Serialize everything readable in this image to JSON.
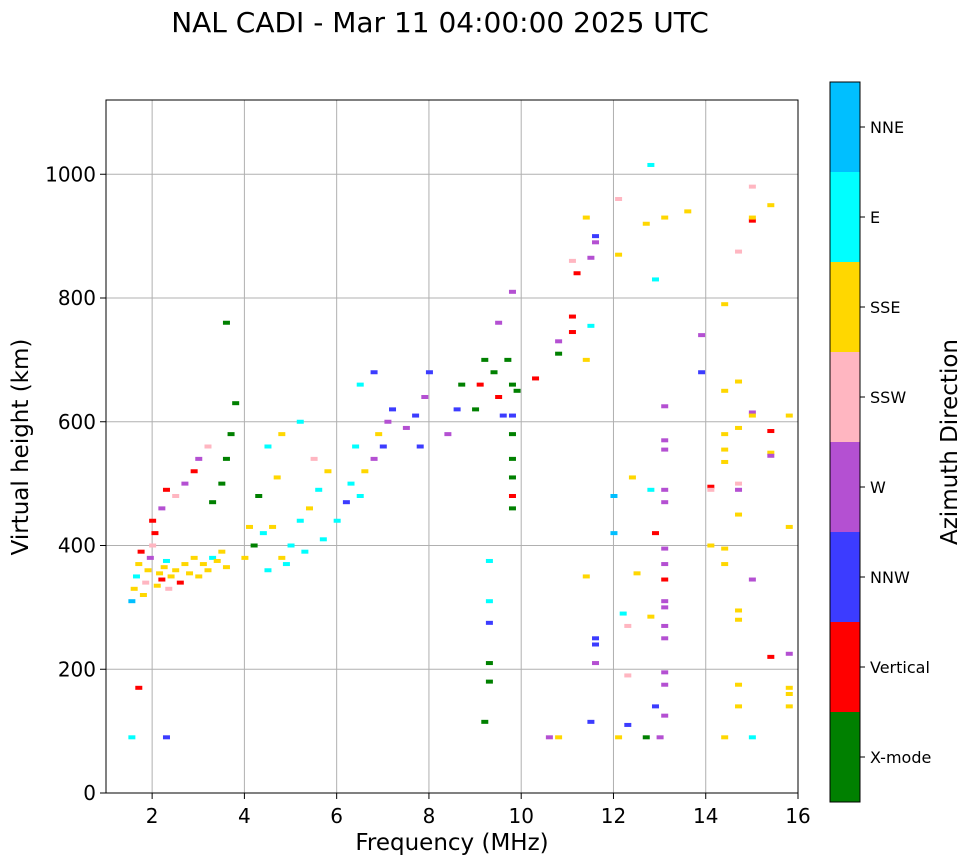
{
  "chart_data": {
    "type": "scatter",
    "title": "NAL CADI - Mar 11 04:00:00 2025 UTC",
    "xlabel": "Frequency (MHz)",
    "ylabel": "Virtual height (km)",
    "xlim": [
      1,
      16
    ],
    "ylim": [
      0,
      1120
    ],
    "xticks": [
      2,
      4,
      6,
      8,
      10,
      12,
      14,
      16
    ],
    "yticks": [
      0,
      200,
      400,
      600,
      800,
      1000
    ],
    "grid": true,
    "colorbar": {
      "title": "Azimuth Direction",
      "categories": [
        {
          "label": "X-mode",
          "color": "#008000"
        },
        {
          "label": "Vertical",
          "color": "#ff0000"
        },
        {
          "label": "NNW",
          "color": "#3c3cff"
        },
        {
          "label": "W",
          "color": "#b450d2"
        },
        {
          "label": "SSW",
          "color": "#ffb6c1"
        },
        {
          "label": "SSE",
          "color": "#ffd700"
        },
        {
          "label": "E",
          "color": "#00ffff"
        },
        {
          "label": "NNE",
          "color": "#00bfff"
        }
      ]
    },
    "points": [
      {
        "f": 1.55,
        "h": 310,
        "c": "NNE"
      },
      {
        "f": 1.6,
        "h": 330,
        "c": "SSE"
      },
      {
        "f": 1.65,
        "h": 350,
        "c": "E"
      },
      {
        "f": 1.7,
        "h": 370,
        "c": "SSE"
      },
      {
        "f": 1.75,
        "h": 390,
        "c": "Vertical"
      },
      {
        "f": 1.8,
        "h": 320,
        "c": "SSE"
      },
      {
        "f": 1.85,
        "h": 340,
        "c": "SSW"
      },
      {
        "f": 1.9,
        "h": 360,
        "c": "SSE"
      },
      {
        "f": 1.95,
        "h": 380,
        "c": "W"
      },
      {
        "f": 2.0,
        "h": 400,
        "c": "SSW"
      },
      {
        "f": 2.05,
        "h": 420,
        "c": "Vertical"
      },
      {
        "f": 2.1,
        "h": 335,
        "c": "SSE"
      },
      {
        "f": 2.15,
        "h": 355,
        "c": "SSE"
      },
      {
        "f": 2.2,
        "h": 345,
        "c": "Vertical"
      },
      {
        "f": 2.25,
        "h": 365,
        "c": "SSE"
      },
      {
        "f": 2.3,
        "h": 375,
        "c": "E"
      },
      {
        "f": 2.35,
        "h": 330,
        "c": "SSW"
      },
      {
        "f": 2.4,
        "h": 350,
        "c": "SSE"
      },
      {
        "f": 2.5,
        "h": 360,
        "c": "SSE"
      },
      {
        "f": 2.6,
        "h": 340,
        "c": "Vertical"
      },
      {
        "f": 2.7,
        "h": 370,
        "c": "SSE"
      },
      {
        "f": 2.8,
        "h": 355,
        "c": "SSE"
      },
      {
        "f": 2.9,
        "h": 380,
        "c": "SSE"
      },
      {
        "f": 3.0,
        "h": 350,
        "c": "SSE"
      },
      {
        "f": 3.1,
        "h": 370,
        "c": "SSE"
      },
      {
        "f": 3.2,
        "h": 360,
        "c": "SSE"
      },
      {
        "f": 3.3,
        "h": 380,
        "c": "E"
      },
      {
        "f": 3.4,
        "h": 375,
        "c": "SSE"
      },
      {
        "f": 3.5,
        "h": 390,
        "c": "SSE"
      },
      {
        "f": 3.6,
        "h": 365,
        "c": "SSE"
      },
      {
        "f": 2.0,
        "h": 440,
        "c": "Vertical"
      },
      {
        "f": 2.2,
        "h": 460,
        "c": "W"
      },
      {
        "f": 2.3,
        "h": 490,
        "c": "Vertical"
      },
      {
        "f": 2.5,
        "h": 480,
        "c": "SSW"
      },
      {
        "f": 2.7,
        "h": 500,
        "c": "W"
      },
      {
        "f": 2.9,
        "h": 520,
        "c": "Vertical"
      },
      {
        "f": 3.0,
        "h": 540,
        "c": "W"
      },
      {
        "f": 3.2,
        "h": 560,
        "c": "SSW"
      },
      {
        "f": 3.3,
        "h": 470,
        "c": "X-mode"
      },
      {
        "f": 3.5,
        "h": 500,
        "c": "X-mode"
      },
      {
        "f": 3.6,
        "h": 540,
        "c": "X-mode"
      },
      {
        "f": 3.7,
        "h": 580,
        "c": "X-mode"
      },
      {
        "f": 3.8,
        "h": 630,
        "c": "X-mode"
      },
      {
        "f": 3.6,
        "h": 760,
        "c": "X-mode"
      },
      {
        "f": 1.55,
        "h": 90,
        "c": "E"
      },
      {
        "f": 1.7,
        "h": 170,
        "c": "Vertical"
      },
      {
        "f": 2.3,
        "h": 90,
        "c": "NNW"
      },
      {
        "f": 4.0,
        "h": 380,
        "c": "SSE"
      },
      {
        "f": 4.2,
        "h": 400,
        "c": "X-mode"
      },
      {
        "f": 4.4,
        "h": 420,
        "c": "E"
      },
      {
        "f": 4.6,
        "h": 430,
        "c": "SSE"
      },
      {
        "f": 4.8,
        "h": 380,
        "c": "SSE"
      },
      {
        "f": 5.0,
        "h": 400,
        "c": "E"
      },
      {
        "f": 5.2,
        "h": 440,
        "c": "E"
      },
      {
        "f": 5.4,
        "h": 460,
        "c": "SSE"
      },
      {
        "f": 5.6,
        "h": 490,
        "c": "E"
      },
      {
        "f": 5.8,
        "h": 520,
        "c": "SSE"
      },
      {
        "f": 4.5,
        "h": 360,
        "c": "E"
      },
      {
        "f": 4.9,
        "h": 370,
        "c": "E"
      },
      {
        "f": 5.3,
        "h": 390,
        "c": "E"
      },
      {
        "f": 5.7,
        "h": 410,
        "c": "E"
      },
      {
        "f": 4.3,
        "h": 480,
        "c": "X-mode"
      },
      {
        "f": 4.5,
        "h": 560,
        "c": "E"
      },
      {
        "f": 4.8,
        "h": 580,
        "c": "SSE"
      },
      {
        "f": 5.2,
        "h": 600,
        "c": "E"
      },
      {
        "f": 5.5,
        "h": 540,
        "c": "SSW"
      },
      {
        "f": 4.1,
        "h": 430,
        "c": "SSE"
      },
      {
        "f": 4.7,
        "h": 510,
        "c": "SSE"
      },
      {
        "f": 6.0,
        "h": 440,
        "c": "E"
      },
      {
        "f": 6.2,
        "h": 470,
        "c": "NNW"
      },
      {
        "f": 6.3,
        "h": 500,
        "c": "E"
      },
      {
        "f": 6.5,
        "h": 480,
        "c": "E"
      },
      {
        "f": 6.6,
        "h": 520,
        "c": "SSE"
      },
      {
        "f": 6.8,
        "h": 540,
        "c": "W"
      },
      {
        "f": 7.0,
        "h": 560,
        "c": "NNW"
      },
      {
        "f": 7.1,
        "h": 600,
        "c": "W"
      },
      {
        "f": 7.2,
        "h": 620,
        "c": "NNW"
      },
      {
        "f": 6.9,
        "h": 580,
        "c": "SSE"
      },
      {
        "f": 6.4,
        "h": 560,
        "c": "E"
      },
      {
        "f": 6.5,
        "h": 660,
        "c": "E"
      },
      {
        "f": 6.8,
        "h": 680,
        "c": "NNW"
      },
      {
        "f": 7.5,
        "h": 590,
        "c": "W"
      },
      {
        "f": 7.7,
        "h": 610,
        "c": "NNW"
      },
      {
        "f": 7.9,
        "h": 640,
        "c": "W"
      },
      {
        "f": 8.0,
        "h": 680,
        "c": "NNW"
      },
      {
        "f": 7.8,
        "h": 560,
        "c": "NNW"
      },
      {
        "f": 8.4,
        "h": 580,
        "c": "W"
      },
      {
        "f": 8.6,
        "h": 620,
        "c": "NNW"
      },
      {
        "f": 8.7,
        "h": 660,
        "c": "X-mode"
      },
      {
        "f": 9.0,
        "h": 620,
        "c": "X-mode"
      },
      {
        "f": 9.1,
        "h": 660,
        "c": "Vertical"
      },
      {
        "f": 9.2,
        "h": 700,
        "c": "X-mode"
      },
      {
        "f": 9.4,
        "h": 680,
        "c": "X-mode"
      },
      {
        "f": 9.5,
        "h": 640,
        "c": "Vertical"
      },
      {
        "f": 9.6,
        "h": 610,
        "c": "NNW"
      },
      {
        "f": 9.8,
        "h": 660,
        "c": "X-mode"
      },
      {
        "f": 9.7,
        "h": 700,
        "c": "X-mode"
      },
      {
        "f": 9.9,
        "h": 650,
        "c": "X-mode"
      },
      {
        "f": 9.5,
        "h": 760,
        "c": "W"
      },
      {
        "f": 9.8,
        "h": 810,
        "c": "W"
      },
      {
        "f": 9.8,
        "h": 540,
        "c": "X-mode"
      },
      {
        "f": 9.8,
        "h": 510,
        "c": "X-mode"
      },
      {
        "f": 9.8,
        "h": 480,
        "c": "Vertical"
      },
      {
        "f": 9.8,
        "h": 460,
        "c": "X-mode"
      },
      {
        "f": 9.8,
        "h": 580,
        "c": "X-mode"
      },
      {
        "f": 9.8,
        "h": 610,
        "c": "NNW"
      },
      {
        "f": 9.3,
        "h": 375,
        "c": "E"
      },
      {
        "f": 9.3,
        "h": 310,
        "c": "E"
      },
      {
        "f": 9.3,
        "h": 275,
        "c": "NNW"
      },
      {
        "f": 9.3,
        "h": 210,
        "c": "X-mode"
      },
      {
        "f": 9.3,
        "h": 180,
        "c": "X-mode"
      },
      {
        "f": 9.2,
        "h": 115,
        "c": "X-mode"
      },
      {
        "f": 10.3,
        "h": 670,
        "c": "Vertical"
      },
      {
        "f": 10.8,
        "h": 710,
        "c": "X-mode"
      },
      {
        "f": 10.8,
        "h": 730,
        "c": "W"
      },
      {
        "f": 11.1,
        "h": 745,
        "c": "Vertical"
      },
      {
        "f": 11.1,
        "h": 770,
        "c": "Vertical"
      },
      {
        "f": 11.1,
        "h": 860,
        "c": "SSW"
      },
      {
        "f": 11.2,
        "h": 840,
        "c": "Vertical"
      },
      {
        "f": 11.4,
        "h": 930,
        "c": "SSE"
      },
      {
        "f": 11.5,
        "h": 865,
        "c": "W"
      },
      {
        "f": 11.6,
        "h": 900,
        "c": "NNW"
      },
      {
        "f": 11.6,
        "h": 890,
        "c": "W"
      },
      {
        "f": 11.5,
        "h": 755,
        "c": "E"
      },
      {
        "f": 11.4,
        "h": 700,
        "c": "SSE"
      },
      {
        "f": 11.4,
        "h": 350,
        "c": "SSE"
      },
      {
        "f": 11.6,
        "h": 250,
        "c": "NNW"
      },
      {
        "f": 11.6,
        "h": 240,
        "c": "NNW"
      },
      {
        "f": 11.6,
        "h": 210,
        "c": "W"
      },
      {
        "f": 11.5,
        "h": 115,
        "c": "NNW"
      },
      {
        "f": 10.6,
        "h": 90,
        "c": "W"
      },
      {
        "f": 10.8,
        "h": 90,
        "c": "SSE"
      },
      {
        "f": 12.1,
        "h": 960,
        "c": "SSW"
      },
      {
        "f": 12.1,
        "h": 870,
        "c": "SSE"
      },
      {
        "f": 12.0,
        "h": 480,
        "c": "NNE"
      },
      {
        "f": 12.0,
        "h": 420,
        "c": "NNE"
      },
      {
        "f": 12.2,
        "h": 290,
        "c": "E"
      },
      {
        "f": 12.3,
        "h": 270,
        "c": "SSW"
      },
      {
        "f": 12.3,
        "h": 190,
        "c": "SSW"
      },
      {
        "f": 12.3,
        "h": 110,
        "c": "NNW"
      },
      {
        "f": 12.1,
        "h": 90,
        "c": "SSE"
      },
      {
        "f": 12.4,
        "h": 510,
        "c": "SSE"
      },
      {
        "f": 12.5,
        "h": 355,
        "c": "SSE"
      },
      {
        "f": 12.7,
        "h": 90,
        "c": "X-mode"
      },
      {
        "f": 12.8,
        "h": 1015,
        "c": "E"
      },
      {
        "f": 12.7,
        "h": 920,
        "c": "SSE"
      },
      {
        "f": 12.9,
        "h": 830,
        "c": "E"
      },
      {
        "f": 12.8,
        "h": 490,
        "c": "E"
      },
      {
        "f": 12.9,
        "h": 420,
        "c": "Vertical"
      },
      {
        "f": 12.8,
        "h": 285,
        "c": "SSE"
      },
      {
        "f": 12.9,
        "h": 140,
        "c": "NNW"
      },
      {
        "f": 13.1,
        "h": 930,
        "c": "SSE"
      },
      {
        "f": 13.1,
        "h": 625,
        "c": "W"
      },
      {
        "f": 13.1,
        "h": 570,
        "c": "W"
      },
      {
        "f": 13.1,
        "h": 555,
        "c": "W"
      },
      {
        "f": 13.1,
        "h": 490,
        "c": "W"
      },
      {
        "f": 13.1,
        "h": 470,
        "c": "W"
      },
      {
        "f": 13.1,
        "h": 395,
        "c": "W"
      },
      {
        "f": 13.1,
        "h": 370,
        "c": "W"
      },
      {
        "f": 13.1,
        "h": 345,
        "c": "Vertical"
      },
      {
        "f": 13.1,
        "h": 310,
        "c": "W"
      },
      {
        "f": 13.1,
        "h": 300,
        "c": "W"
      },
      {
        "f": 13.1,
        "h": 270,
        "c": "W"
      },
      {
        "f": 13.1,
        "h": 250,
        "c": "W"
      },
      {
        "f": 13.1,
        "h": 195,
        "c": "W"
      },
      {
        "f": 13.1,
        "h": 175,
        "c": "W"
      },
      {
        "f": 13.1,
        "h": 125,
        "c": "W"
      },
      {
        "f": 13.0,
        "h": 90,
        "c": "W"
      },
      {
        "f": 13.6,
        "h": 940,
        "c": "SSE"
      },
      {
        "f": 13.9,
        "h": 740,
        "c": "W"
      },
      {
        "f": 13.9,
        "h": 680,
        "c": "NNW"
      },
      {
        "f": 14.1,
        "h": 495,
        "c": "Vertical"
      },
      {
        "f": 14.1,
        "h": 490,
        "c": "SSW"
      },
      {
        "f": 14.1,
        "h": 400,
        "c": "SSE"
      },
      {
        "f": 14.4,
        "h": 790,
        "c": "SSE"
      },
      {
        "f": 14.4,
        "h": 650,
        "c": "SSE"
      },
      {
        "f": 14.4,
        "h": 580,
        "c": "SSE"
      },
      {
        "f": 14.4,
        "h": 555,
        "c": "SSE"
      },
      {
        "f": 14.4,
        "h": 535,
        "c": "SSE"
      },
      {
        "f": 14.4,
        "h": 395,
        "c": "SSE"
      },
      {
        "f": 14.4,
        "h": 370,
        "c": "SSE"
      },
      {
        "f": 14.4,
        "h": 90,
        "c": "SSE"
      },
      {
        "f": 14.7,
        "h": 875,
        "c": "SSW"
      },
      {
        "f": 14.7,
        "h": 665,
        "c": "SSE"
      },
      {
        "f": 14.7,
        "h": 590,
        "c": "SSE"
      },
      {
        "f": 14.7,
        "h": 500,
        "c": "SSW"
      },
      {
        "f": 14.7,
        "h": 490,
        "c": "W"
      },
      {
        "f": 14.7,
        "h": 450,
        "c": "SSE"
      },
      {
        "f": 14.7,
        "h": 295,
        "c": "SSE"
      },
      {
        "f": 14.7,
        "h": 280,
        "c": "SSE"
      },
      {
        "f": 14.7,
        "h": 175,
        "c": "SSE"
      },
      {
        "f": 14.7,
        "h": 140,
        "c": "SSE"
      },
      {
        "f": 15.0,
        "h": 980,
        "c": "SSW"
      },
      {
        "f": 15.0,
        "h": 925,
        "c": "Vertical"
      },
      {
        "f": 15.0,
        "h": 930,
        "c": "SSE"
      },
      {
        "f": 15.0,
        "h": 615,
        "c": "W"
      },
      {
        "f": 15.0,
        "h": 610,
        "c": "SSE"
      },
      {
        "f": 15.0,
        "h": 345,
        "c": "W"
      },
      {
        "f": 15.0,
        "h": 90,
        "c": "E"
      },
      {
        "f": 15.4,
        "h": 950,
        "c": "SSE"
      },
      {
        "f": 15.4,
        "h": 585,
        "c": "Vertical"
      },
      {
        "f": 15.4,
        "h": 550,
        "c": "SSE"
      },
      {
        "f": 15.4,
        "h": 545,
        "c": "W"
      },
      {
        "f": 15.4,
        "h": 220,
        "c": "Vertical"
      },
      {
        "f": 15.8,
        "h": 610,
        "c": "SSE"
      },
      {
        "f": 15.8,
        "h": 430,
        "c": "SSE"
      },
      {
        "f": 15.8,
        "h": 225,
        "c": "W"
      },
      {
        "f": 15.8,
        "h": 170,
        "c": "SSE"
      },
      {
        "f": 15.8,
        "h": 160,
        "c": "SSE"
      },
      {
        "f": 15.8,
        "h": 140,
        "c": "SSE"
      }
    ]
  }
}
